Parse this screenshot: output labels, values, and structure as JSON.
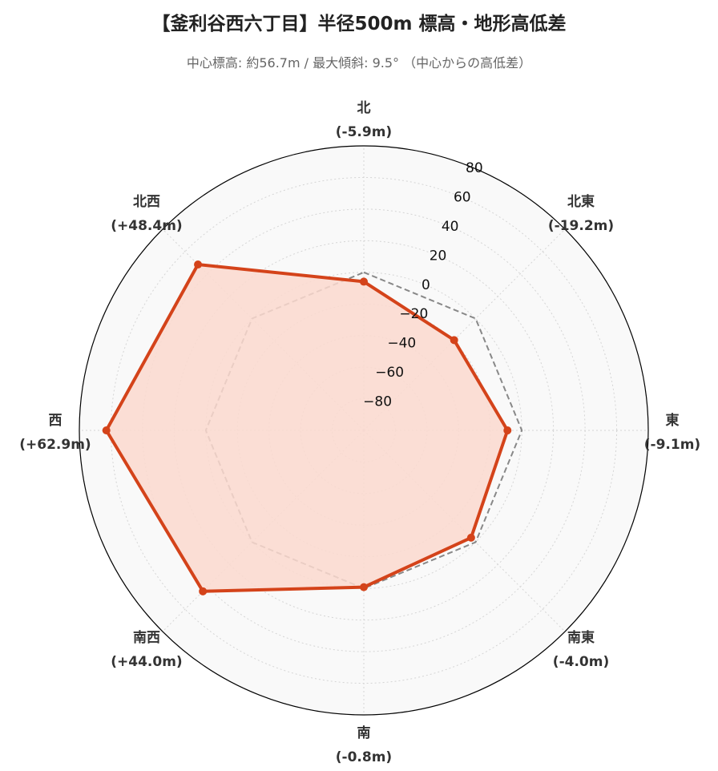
{
  "title": "【釜利谷西六丁目】半径500m 標高・地形高低差",
  "subtitle": "中心標高: 約56.7m / 最大傾斜: 9.5° （中心からの高低差）",
  "chart_data": {
    "type": "radar",
    "title": "【釜利谷西六丁目】半径500m 標高・地形高低差",
    "subtitle": "中心標高: 約56.7m / 最大傾斜: 9.5° （中心からの高低差）",
    "directions": [
      "北",
      "北東",
      "東",
      "南東",
      "南",
      "南西",
      "西",
      "北西"
    ],
    "direction_labels": [
      "(-5.9m)",
      "(-19.2m)",
      "(-9.1m)",
      "(-4.0m)",
      "(-0.8m)",
      "(+44.0m)",
      "(+62.9m)",
      "(+48.4m)"
    ],
    "series": [
      {
        "values": [
          -5.9,
          -19.2,
          -9.1,
          -4.0,
          -0.8,
          44.0,
          62.9,
          48.4
        ],
        "color": "#d4431a",
        "fill": "#fcd9cf",
        "style": "solid"
      },
      {
        "values": [
          0,
          0,
          0,
          0,
          0,
          0,
          0,
          0
        ],
        "color": "#888888",
        "style": "dashed"
      }
    ],
    "rlim": [
      -100,
      80
    ],
    "rticks": [
      80,
      60,
      40,
      20,
      0,
      -20,
      -40,
      -60,
      -80
    ],
    "rtick_labels": [
      "80",
      "60",
      "40",
      "20",
      "0",
      "−20",
      "−40",
      "−60",
      "−80"
    ],
    "grid": true,
    "colors": {
      "background": "#f9f9f9",
      "grid": "#d5d5d5",
      "outline": "#000000"
    }
  }
}
